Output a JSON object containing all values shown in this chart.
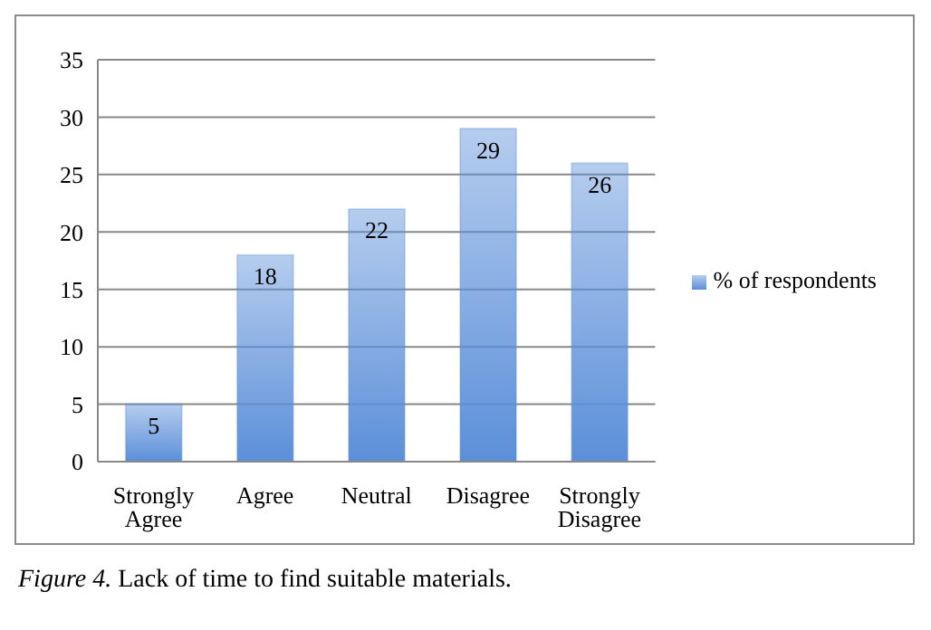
{
  "chart_data": {
    "type": "bar",
    "categories": [
      "Strongly Agree",
      "Agree",
      "Neutral",
      "Disagree",
      "Strongly Disagree"
    ],
    "series": [
      {
        "name": "% of respondents",
        "color": "#5b8fd9",
        "values": [
          5,
          18,
          22,
          29,
          26
        ]
      }
    ],
    "ylim": [
      0,
      35
    ],
    "yticks": [
      0,
      5,
      10,
      15,
      20,
      25,
      30,
      35
    ],
    "grid": "y",
    "legend": "right",
    "data_labels": true,
    "annotations": [
      "Figure 4. Lack of time to find suitable materials."
    ]
  }
}
